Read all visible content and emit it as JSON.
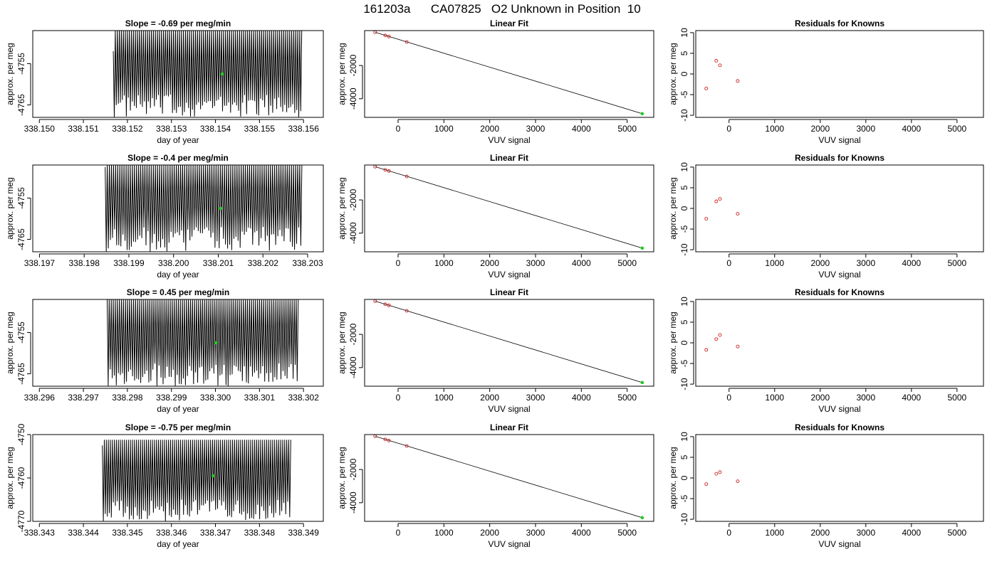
{
  "title": "161203a      CA07825   O2 Unknown in Position  10",
  "colors": {
    "axis": "#000000",
    "known_point": "#cc2222",
    "unknown_point": "#22cc22",
    "trace": "#000000"
  },
  "chart_data": [
    {
      "type": "line",
      "row": 0,
      "col": 0,
      "title": "Slope =  -0.69  per meg/min",
      "xlabel": "day of year",
      "ylabel": "approx. per meg",
      "xlim": [
        338.14985,
        338.15645
      ],
      "ylim": [
        -4768.0,
        -4747.0
      ],
      "xticks": [
        338.15,
        338.151,
        338.152,
        338.153,
        338.154,
        338.155,
        338.156
      ],
      "xtick_labels": [
        "338.150",
        "338.151",
        "338.152",
        "338.153",
        "338.154",
        "338.155",
        "338.156"
      ],
      "yticks": [
        -4755,
        -4765
      ],
      "ytick_labels": [
        "-4755",
        "-4765"
      ],
      "trace": {
        "x_start": 338.15168,
        "x_end": 338.15596,
        "cycles": 94,
        "y_top": -4747.0,
        "y_low_min": -4768.0,
        "y_low_max": -4762.5,
        "y_start": -4752.0
      },
      "unknown_point": {
        "x": 338.15415,
        "y": -4757.5
      }
    },
    {
      "type": "scatter",
      "row": 0,
      "col": 1,
      "title": "Linear Fit",
      "xlabel": "VUV signal",
      "ylabel": "approx. per meg",
      "xlim": [
        -730,
        5580
      ],
      "ylim": [
        -5120,
        100
      ],
      "xticks": [
        0,
        1000,
        2000,
        3000,
        4000,
        5000
      ],
      "xtick_labels": [
        "0",
        "1000",
        "2000",
        "3000",
        "4000",
        "5000"
      ],
      "yticks": [
        -2000,
        -4000
      ],
      "ytick_labels": [
        "-2000",
        "-4000"
      ],
      "fit_line": [
        [
          -500,
          0
        ],
        [
          5330,
          -4900
        ]
      ],
      "knowns": [
        {
          "x": -500,
          "y": 0
        },
        {
          "x": -280,
          "y": -190
        },
        {
          "x": -200,
          "y": -258
        },
        {
          "x": 190,
          "y": -588
        }
      ],
      "unknown": {
        "x": 5330,
        "y": -4900
      }
    },
    {
      "type": "scatter",
      "row": 0,
      "col": 2,
      "title": "Residuals for Knowns",
      "xlabel": "VUV signal",
      "ylabel": "approx. per meg",
      "xlim": [
        -730,
        5580
      ],
      "ylim": [
        -10.5,
        10.5
      ],
      "xticks": [
        0,
        1000,
        2000,
        3000,
        4000,
        5000
      ],
      "xtick_labels": [
        "0",
        "1000",
        "2000",
        "3000",
        "4000",
        "5000"
      ],
      "yticks": [
        10,
        5,
        0,
        -5,
        -10
      ],
      "ytick_labels": [
        "10",
        "5",
        "0",
        "-5",
        "-10"
      ],
      "points": [
        {
          "x": -500,
          "y": -3.5
        },
        {
          "x": -280,
          "y": 3.2
        },
        {
          "x": -200,
          "y": 2.1
        },
        {
          "x": 190,
          "y": -1.7
        }
      ]
    },
    {
      "type": "line",
      "row": 1,
      "col": 0,
      "title": "Slope =  -0.4  per meg/min",
      "xlabel": "day of year",
      "ylabel": "approx. per meg",
      "xlim": [
        338.19685,
        338.20335
      ],
      "ylim": [
        -4768.0,
        -4747.0
      ],
      "xticks": [
        338.197,
        338.198,
        338.199,
        338.2,
        338.201,
        338.202,
        338.203
      ],
      "xtick_labels": [
        "338.197",
        "338.198",
        "338.199",
        "338.200",
        "338.201",
        "338.202",
        "338.203"
      ],
      "yticks": [
        -4755,
        -4765
      ],
      "ytick_labels": [
        "-4755",
        "-4765"
      ],
      "trace": {
        "x_start": 338.19847,
        "x_end": 338.20287,
        "cycles": 94,
        "y_top": -4747.0,
        "y_low_min": -4768.0,
        "y_low_max": -4762.0,
        "y_start": -4747.5
      },
      "unknown_point": {
        "x": 338.20105,
        "y": -4757.5
      }
    },
    {
      "type": "scatter",
      "row": 1,
      "col": 1,
      "title": "Linear Fit",
      "xlabel": "VUV signal",
      "ylabel": "approx. per meg",
      "xlim": [
        -730,
        5580
      ],
      "ylim": [
        -5120,
        100
      ],
      "xticks": [
        0,
        1000,
        2000,
        3000,
        4000,
        5000
      ],
      "xtick_labels": [
        "0",
        "1000",
        "2000",
        "3000",
        "4000",
        "5000"
      ],
      "yticks": [
        -2000,
        -4000
      ],
      "ytick_labels": [
        "-2000",
        "-4000"
      ],
      "fit_line": [
        [
          -500,
          0
        ],
        [
          5330,
          -4900
        ]
      ],
      "knowns": [
        {
          "x": -500,
          "y": 0
        },
        {
          "x": -280,
          "y": -190
        },
        {
          "x": -200,
          "y": -258
        },
        {
          "x": 190,
          "y": -588
        }
      ],
      "unknown": {
        "x": 5330,
        "y": -4900
      }
    },
    {
      "type": "scatter",
      "row": 1,
      "col": 2,
      "title": "Residuals for Knowns",
      "xlabel": "VUV signal",
      "ylabel": "approx. per meg",
      "xlim": [
        -730,
        5580
      ],
      "ylim": [
        -10.5,
        10.5
      ],
      "xticks": [
        0,
        1000,
        2000,
        3000,
        4000,
        5000
      ],
      "xtick_labels": [
        "0",
        "1000",
        "2000",
        "3000",
        "4000",
        "5000"
      ],
      "yticks": [
        10,
        5,
        0,
        -5,
        -10
      ],
      "ytick_labels": [
        "10",
        "5",
        "0",
        "-5",
        "-10"
      ],
      "points": [
        {
          "x": -500,
          "y": -2.5
        },
        {
          "x": -280,
          "y": 1.7
        },
        {
          "x": -200,
          "y": 2.3
        },
        {
          "x": 190,
          "y": -1.3
        }
      ]
    },
    {
      "type": "line",
      "row": 2,
      "col": 0,
      "title": "Slope =  0.45  per meg/min",
      "xlabel": "day of year",
      "ylabel": "approx. per meg",
      "xlim": [
        338.29585,
        338.30245
      ],
      "ylim": [
        -4768.0,
        -4747.0
      ],
      "xticks": [
        338.296,
        338.297,
        338.298,
        338.299,
        338.3,
        338.301,
        338.302
      ],
      "xtick_labels": [
        "338.296",
        "338.297",
        "338.298",
        "338.299",
        "338.300",
        "338.301",
        "338.302"
      ],
      "yticks": [
        -4755,
        -4765
      ],
      "ytick_labels": [
        "-4755",
        "-4765"
      ],
      "trace": {
        "x_start": 338.29754,
        "x_end": 338.30188,
        "cycles": 94,
        "y_top": -4747.0,
        "y_low_min": -4768.0,
        "y_low_max": -4762.5,
        "y_start": -4747.0
      },
      "unknown_point": {
        "x": 338.30001,
        "y": -4757.5
      }
    },
    {
      "type": "scatter",
      "row": 2,
      "col": 1,
      "title": "Linear Fit",
      "xlabel": "VUV signal",
      "ylabel": "approx. per meg",
      "xlim": [
        -730,
        5580
      ],
      "ylim": [
        -5120,
        100
      ],
      "xticks": [
        0,
        1000,
        2000,
        3000,
        4000,
        5000
      ],
      "xtick_labels": [
        "0",
        "1000",
        "2000",
        "3000",
        "4000",
        "5000"
      ],
      "yticks": [
        -2000,
        -4000
      ],
      "ytick_labels": [
        "-2000",
        "-4000"
      ],
      "fit_line": [
        [
          -500,
          0
        ],
        [
          5330,
          -4900
        ]
      ],
      "knowns": [
        {
          "x": -500,
          "y": 0
        },
        {
          "x": -280,
          "y": -190
        },
        {
          "x": -200,
          "y": -258
        },
        {
          "x": 190,
          "y": -588
        }
      ],
      "unknown": {
        "x": 5330,
        "y": -4900
      }
    },
    {
      "type": "scatter",
      "row": 2,
      "col": 2,
      "title": "Residuals for Knowns",
      "xlabel": "VUV signal",
      "ylabel": "approx. per meg",
      "xlim": [
        -730,
        5580
      ],
      "ylim": [
        -10.5,
        10.5
      ],
      "xticks": [
        0,
        1000,
        2000,
        3000,
        4000,
        5000
      ],
      "xtick_labels": [
        "0",
        "1000",
        "2000",
        "3000",
        "4000",
        "5000"
      ],
      "yticks": [
        10,
        5,
        0,
        -5,
        -10
      ],
      "ytick_labels": [
        "10",
        "5",
        "0",
        "-5",
        "-10"
      ],
      "points": [
        {
          "x": -500,
          "y": -1.7
        },
        {
          "x": -280,
          "y": 0.9
        },
        {
          "x": -200,
          "y": 1.9
        },
        {
          "x": 190,
          "y": -0.9
        }
      ]
    },
    {
      "type": "line",
      "row": 3,
      "col": 0,
      "title": "Slope =  -0.75  per meg/min",
      "xlabel": "day of year",
      "ylabel": "approx. per meg",
      "xlim": [
        338.34285,
        338.34945
      ],
      "ylim": [
        -4770.0,
        -4750.0
      ],
      "xticks": [
        338.343,
        338.344,
        338.345,
        338.346,
        338.347,
        338.348,
        338.349
      ],
      "xtick_labels": [
        "338.343",
        "338.344",
        "338.345",
        "338.346",
        "338.347",
        "338.348",
        "338.349"
      ],
      "yticks": [
        -4750,
        -4760,
        -4770
      ],
      "ytick_labels": [
        "-4750",
        "-4760",
        "-4770"
      ],
      "trace": {
        "x_start": 338.34443,
        "x_end": 338.34871,
        "cycles": 94,
        "y_top": -4751.5,
        "y_low_min": -4770.0,
        "y_low_max": -4765.0,
        "y_start": -4752.5
      },
      "unknown_point": {
        "x": 338.34695,
        "y": -4759.5
      }
    },
    {
      "type": "scatter",
      "row": 3,
      "col": 1,
      "title": "Linear Fit",
      "xlabel": "VUV signal",
      "ylabel": "approx. per meg",
      "xlim": [
        -730,
        5580
      ],
      "ylim": [
        -5120,
        100
      ],
      "xticks": [
        0,
        1000,
        2000,
        3000,
        4000,
        5000
      ],
      "xtick_labels": [
        "0",
        "1000",
        "2000",
        "3000",
        "4000",
        "5000"
      ],
      "yticks": [
        -2000,
        -4000
      ],
      "ytick_labels": [
        "-2000",
        "-4000"
      ],
      "fit_line": [
        [
          -500,
          0
        ],
        [
          5330,
          -4900
        ]
      ],
      "knowns": [
        {
          "x": -500,
          "y": 0
        },
        {
          "x": -280,
          "y": -190
        },
        {
          "x": -200,
          "y": -258
        },
        {
          "x": 190,
          "y": -588
        }
      ],
      "unknown": {
        "x": 5330,
        "y": -4900
      }
    },
    {
      "type": "scatter",
      "row": 3,
      "col": 2,
      "title": "Residuals for Knowns",
      "xlabel": "VUV signal",
      "ylabel": "approx. per meg",
      "xlim": [
        -730,
        5580
      ],
      "ylim": [
        -10.5,
        10.5
      ],
      "xticks": [
        0,
        1000,
        2000,
        3000,
        4000,
        5000
      ],
      "xtick_labels": [
        "0",
        "1000",
        "2000",
        "3000",
        "4000",
        "5000"
      ],
      "yticks": [
        10,
        5,
        0,
        -5,
        -10
      ],
      "ytick_labels": [
        "10",
        "5",
        "0",
        "-5",
        "-10"
      ],
      "points": [
        {
          "x": -500,
          "y": -1.5
        },
        {
          "x": -280,
          "y": 1.0
        },
        {
          "x": -200,
          "y": 1.4
        },
        {
          "x": 190,
          "y": -0.8
        }
      ]
    }
  ]
}
